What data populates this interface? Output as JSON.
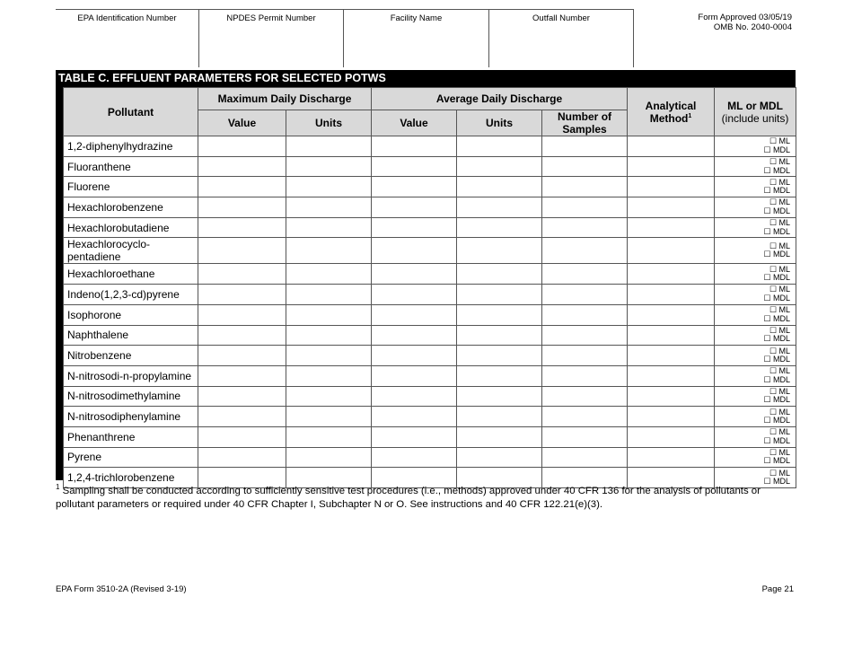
{
  "header": {
    "fields": [
      "EPA Identification Number",
      "NPDES Permit Number",
      "Facility Name",
      "Outfall Number"
    ],
    "approved_line1": "Form Approved 03/05/19",
    "approved_line2": "OMB No. 2040-0004"
  },
  "table": {
    "title": "TABLE C. EFFLUENT PARAMETERS FOR SELECTED POTWS",
    "headers": {
      "pollutant": "Pollutant",
      "max_daily": "Maximum Daily Discharge",
      "avg_daily": "Average Daily Discharge",
      "analytical": "Analytical",
      "method": "Method",
      "method_sup": "1",
      "ml_or_mdl": "ML or MDL",
      "include_units": "(include units)",
      "value": "Value",
      "units": "Units",
      "num_samples_1": "Number of",
      "num_samples_2": "Samples"
    },
    "checkbox_ml": "☐ ML",
    "checkbox_mdl": "☐ MDL",
    "rows": [
      "1,2-diphenylhydrazine",
      "Fluoranthene",
      "Fluorene",
      "Hexachlorobenzene",
      "Hexachlorobutadiene",
      "Hexachlorocyclo-pentadiene",
      "Hexachloroethane",
      "Indeno(1,2,3-cd)pyrene",
      "Isophorone",
      "Naphthalene",
      "Nitrobenzene",
      "N-nitrosodi-n-propylamine",
      "N-nitrosodimethylamine",
      "N-nitrosodiphenylamine",
      "Phenanthrene",
      "Pyrene",
      "1,2,4-trichlorobenzene"
    ]
  },
  "footnote": {
    "mark": "1",
    "text": " Sampling shall be conducted according to sufficiently sensitive test procedures (i.e., methods) approved under 40 CFR 136 for the analysis of pollutants or pollutant parameters or required under 40 CFR Chapter I, Subchapter N or O. See instructions and 40 CFR 122.21(e)(3)."
  },
  "footer": {
    "form": "EPA Form 3510-2A (Revised 3-19)",
    "page": "Page 21"
  }
}
